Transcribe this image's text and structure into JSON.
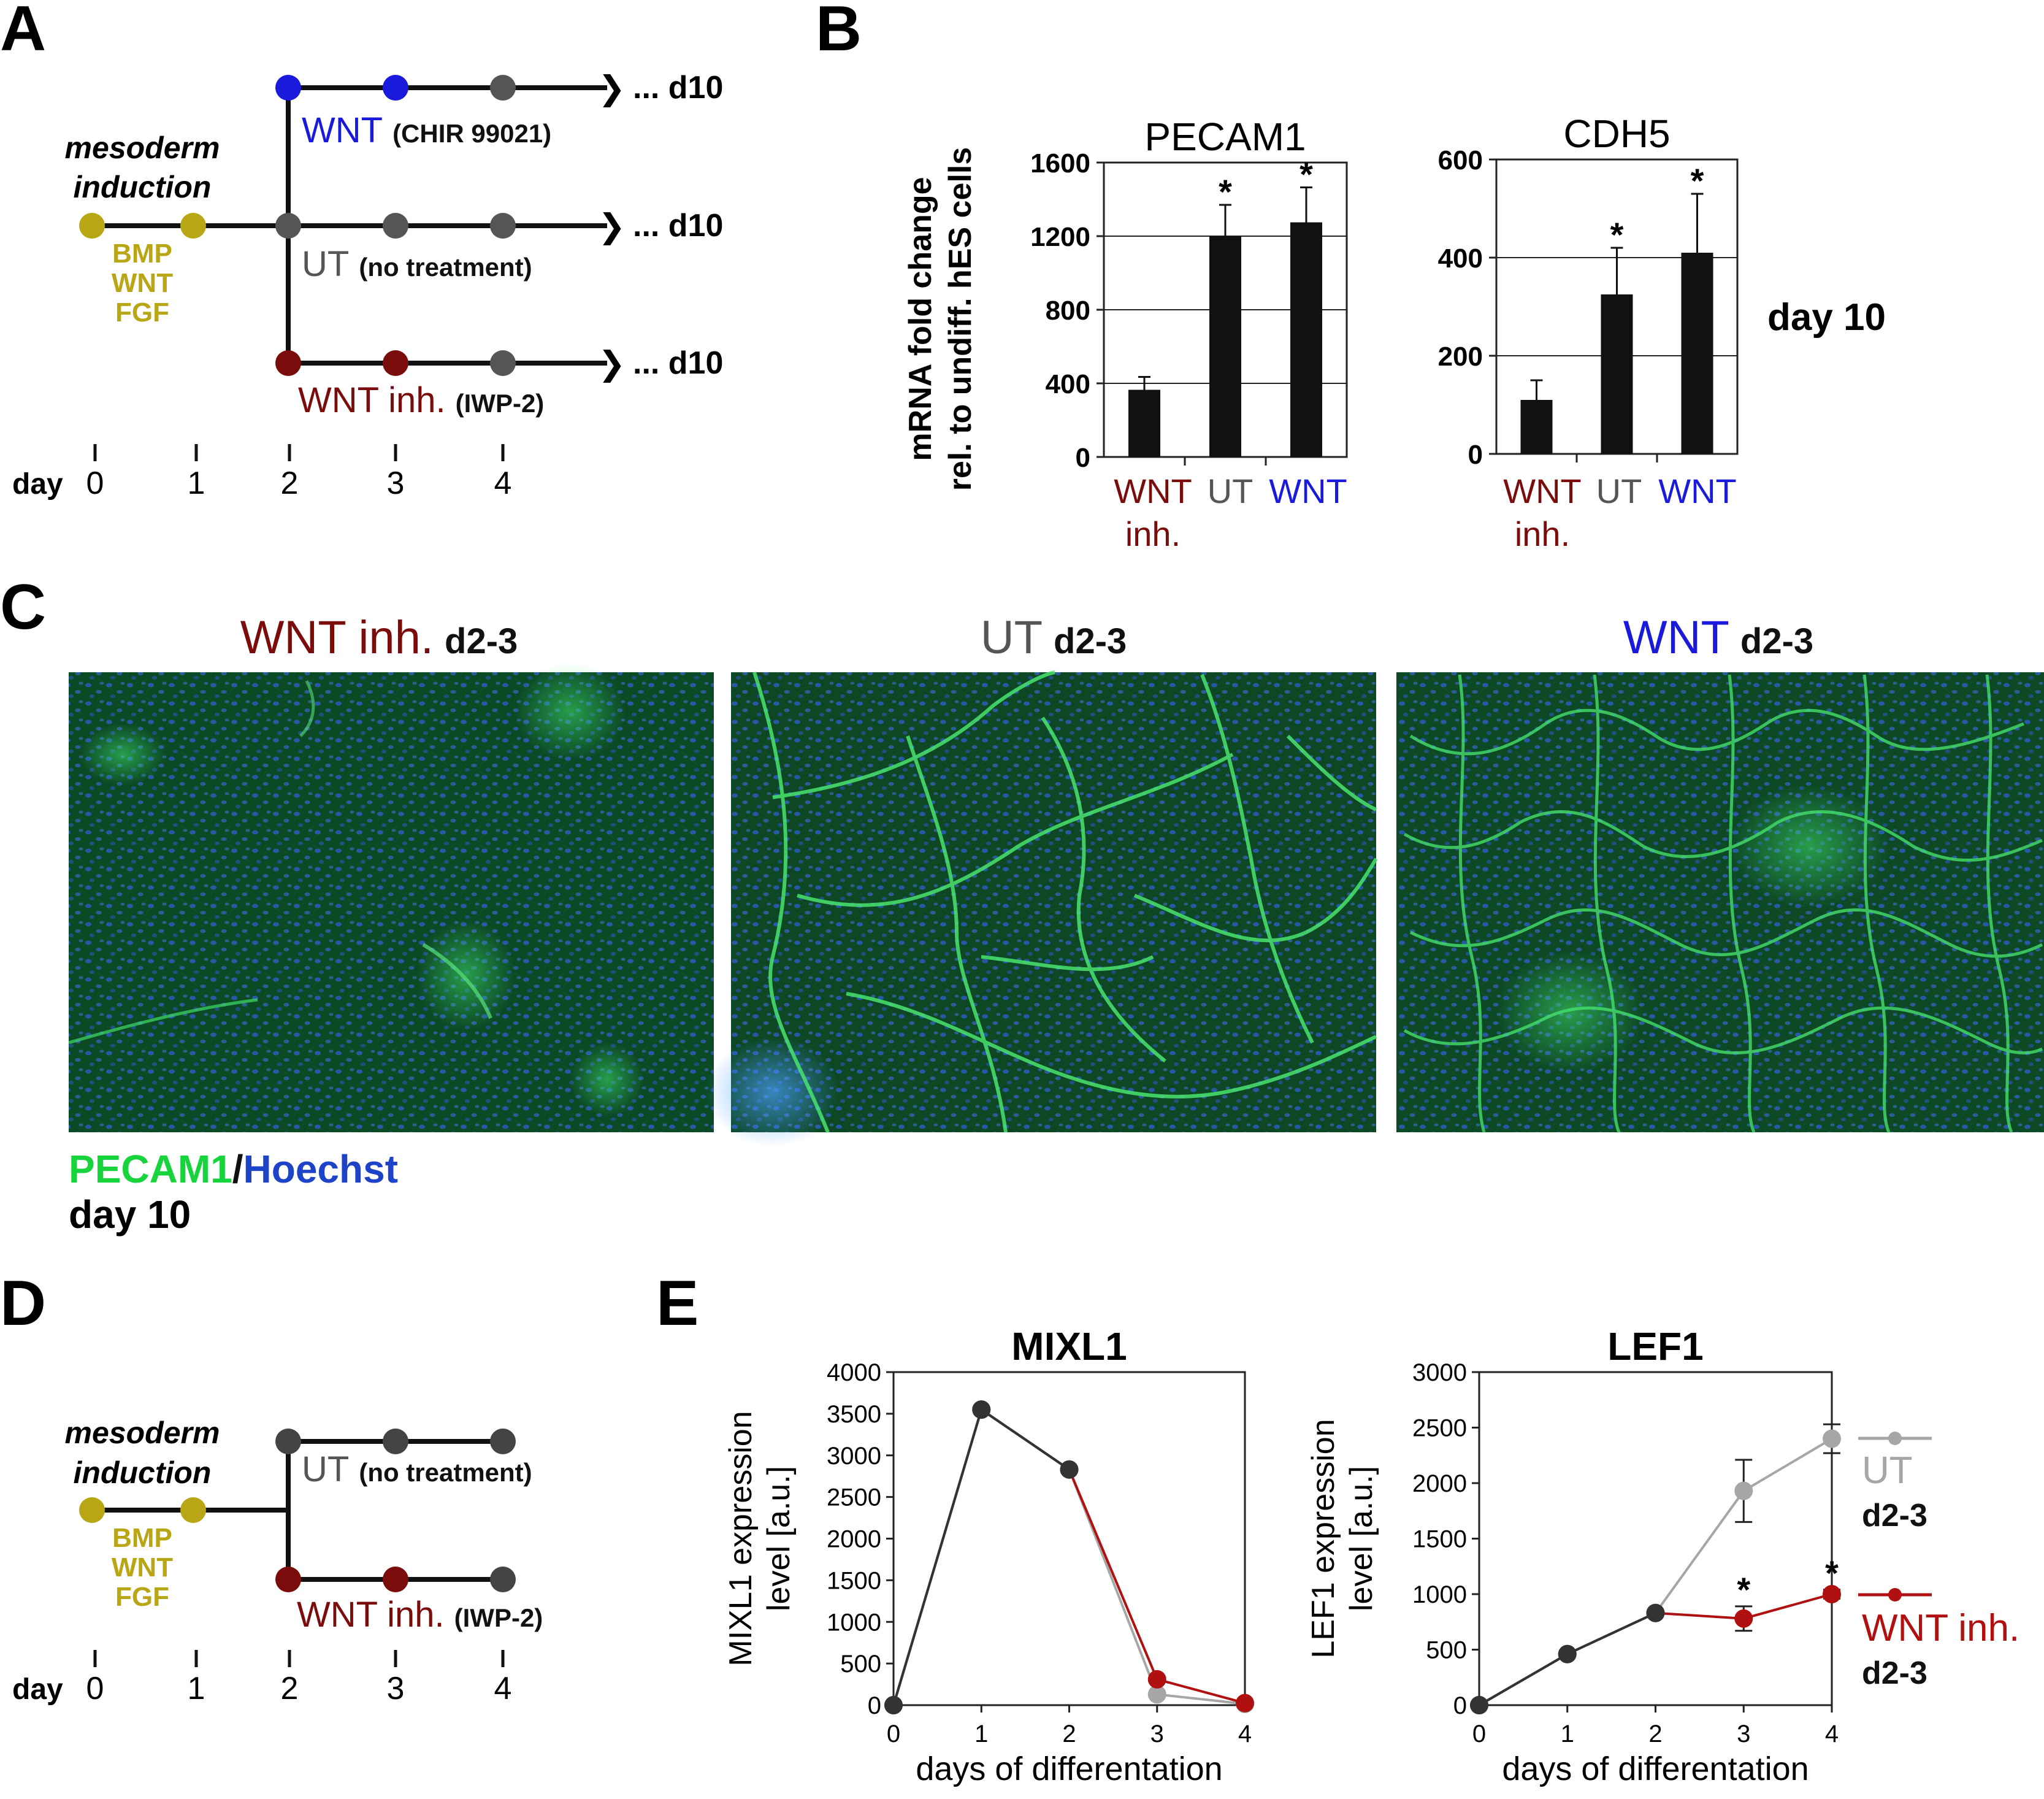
{
  "panels": {
    "a": "A",
    "b": "B",
    "c": "C",
    "d": "D",
    "e": "E"
  },
  "colors": {
    "wnt": "#1a1adc",
    "ut": "#555555",
    "inh": "#7a0c0c",
    "meso": "#b8a614",
    "ut_line": "#a6a6a6",
    "inh_line": "#b01010",
    "green": "#17d43c",
    "hoechst": "#1d43c8"
  },
  "panel_a": {
    "mesoderm_line1": "mesoderm",
    "mesoderm_line2": "induction",
    "meso_factors": [
      "BMP",
      "WNT",
      "FGF"
    ],
    "branches": [
      {
        "name": "WNT",
        "detail": "(CHIR 99021)",
        "end": "... d10"
      },
      {
        "name": "UT",
        "detail": "(no treatment)",
        "end": "... d10"
      },
      {
        "name": "WNT inh.",
        "detail": "(IWP-2)",
        "end": "... d10"
      }
    ],
    "day_label": "day",
    "days": [
      "0",
      "1",
      "2",
      "3",
      "4"
    ]
  },
  "panel_b": {
    "ylabel_line1": "mRNA fold change",
    "ylabel_line2": "rel. to  undiff. hES cells",
    "side_label": "day 10",
    "cat_labels": {
      "inh_1": "WNT",
      "inh_2": "inh.",
      "ut": "UT",
      "wnt": "WNT"
    }
  },
  "panel_c": {
    "titles": [
      {
        "name": "WNT inh.",
        "suffix": "d2-3"
      },
      {
        "name": "UT",
        "suffix": "d2-3"
      },
      {
        "name": "WNT",
        "suffix": "d2-3"
      }
    ],
    "stain_green": "PECAM1",
    "stain_sep": "/",
    "stain_blue": "Hoechst",
    "day": "day 10"
  },
  "panel_d": {
    "mesoderm_line1": "mesoderm",
    "mesoderm_line2": "induction",
    "meso_factors": [
      "BMP",
      "WNT",
      "FGF"
    ],
    "branches": [
      {
        "name": "UT",
        "detail": "(no treatment)"
      },
      {
        "name": "WNT inh.",
        "detail": "(IWP-2)"
      }
    ],
    "day_label": "day",
    "days": [
      "0",
      "1",
      "2",
      "3",
      "4"
    ]
  },
  "panel_e": {
    "legend": [
      {
        "name": "UT",
        "sub": "d2-3"
      },
      {
        "name": "WNT inh.",
        "sub": "d2-3"
      }
    ]
  },
  "chart_data": [
    {
      "id": "pecam1",
      "type": "bar",
      "title": "PECAM1",
      "categories": [
        "WNT inh.",
        "UT",
        "WNT"
      ],
      "values": [
        365,
        1200,
        1275
      ],
      "errors": [
        70,
        170,
        190
      ],
      "significant": [
        false,
        true,
        true
      ],
      "ylim": [
        0,
        1600
      ],
      "yticks": [
        0,
        400,
        800,
        1200,
        1600
      ],
      "grid": true,
      "ylabel": "mRNA fold change rel. to undiff. hES cells"
    },
    {
      "id": "cdh5",
      "type": "bar",
      "title": "CDH5",
      "categories": [
        "WNT inh.",
        "UT",
        "WNT"
      ],
      "values": [
        110,
        325,
        410
      ],
      "errors": [
        40,
        95,
        120
      ],
      "significant": [
        false,
        true,
        true
      ],
      "ylim": [
        0,
        600
      ],
      "yticks": [
        0,
        200,
        400,
        600
      ],
      "grid": true,
      "ylabel": "mRNA fold change rel. to undiff. hES cells"
    },
    {
      "id": "mixl1",
      "type": "line",
      "title": "MIXL1",
      "xlabel": "days of differentation",
      "ylabel": "MIXL1 expression level [a.u.]",
      "x": [
        0,
        1,
        2,
        3,
        4
      ],
      "xlim": [
        0,
        4
      ],
      "ylim": [
        0,
        4000
      ],
      "yticks": [
        0,
        500,
        1000,
        1500,
        2000,
        2500,
        3000,
        3500,
        4000
      ],
      "series": [
        {
          "name": "UT d2-3",
          "values": [
            0,
            3550,
            2830,
            130,
            15
          ]
        },
        {
          "name": "WNT inh. d2-3",
          "values": [
            0,
            3550,
            2830,
            310,
            25
          ]
        }
      ]
    },
    {
      "id": "lef1",
      "type": "line",
      "title": "LEF1",
      "xlabel": "days of differentation",
      "ylabel": "LEF1 expression level [a.u.]",
      "x": [
        0,
        1,
        2,
        3,
        4
      ],
      "xlim": [
        0,
        4
      ],
      "ylim": [
        0,
        3000
      ],
      "yticks": [
        0,
        500,
        1000,
        1500,
        2000,
        2500,
        3000
      ],
      "series": [
        {
          "name": "UT d2-3",
          "values": [
            0,
            460,
            830,
            1930,
            2400
          ],
          "errors": [
            0,
            0,
            0,
            280,
            130
          ]
        },
        {
          "name": "WNT inh. d2-3",
          "values": [
            0,
            460,
            830,
            780,
            1000
          ],
          "errors": [
            0,
            0,
            0,
            110,
            40
          ]
        }
      ],
      "significant_x": [
        3,
        4
      ]
    }
  ]
}
